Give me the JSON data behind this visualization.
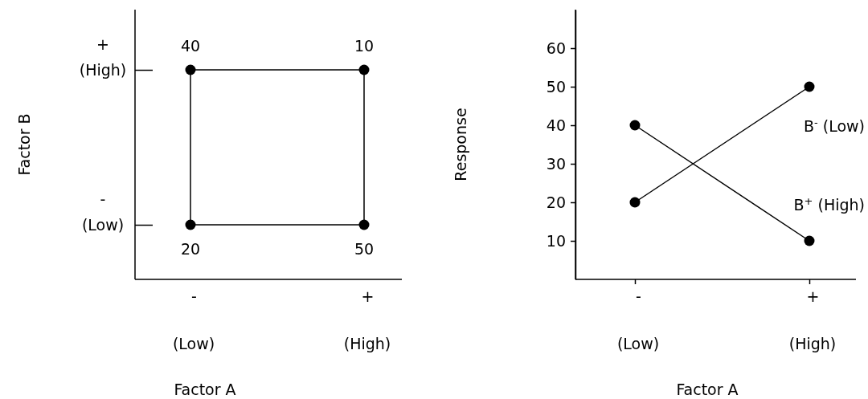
{
  "chart_data": [
    {
      "type": "heatmap",
      "categories": [
        "-",
        "+"
      ],
      "y_categories": [
        "+",
        "-"
      ],
      "cells": [
        [
          40,
          10
        ],
        [
          20,
          50
        ]
      ],
      "data_labels": true,
      "xlabel": "Factor A",
      "ylabel": "Factor B",
      "annotations": [
        "(Low)",
        "(High)",
        "(High)",
        "(Low)"
      ]
    },
    {
      "type": "line",
      "categories": [
        "-",
        "+"
      ],
      "series": [
        {
          "name": "B$^{-}$ (Low)",
          "color": "#000000",
          "values": [
            20,
            50
          ]
        },
        {
          "name": "B$^{+}$ (High)",
          "color": "#000000",
          "values": [
            40,
            10
          ]
        }
      ],
      "ylim": [
        0,
        70
      ],
      "yticks": [
        10,
        20,
        30,
        40,
        50,
        60
      ],
      "xlabel": "Factor A",
      "ylabel": "Response",
      "marker": "circle",
      "grid": false,
      "annotations": [
        "(Low)",
        "(High)"
      ]
    }
  ]
}
